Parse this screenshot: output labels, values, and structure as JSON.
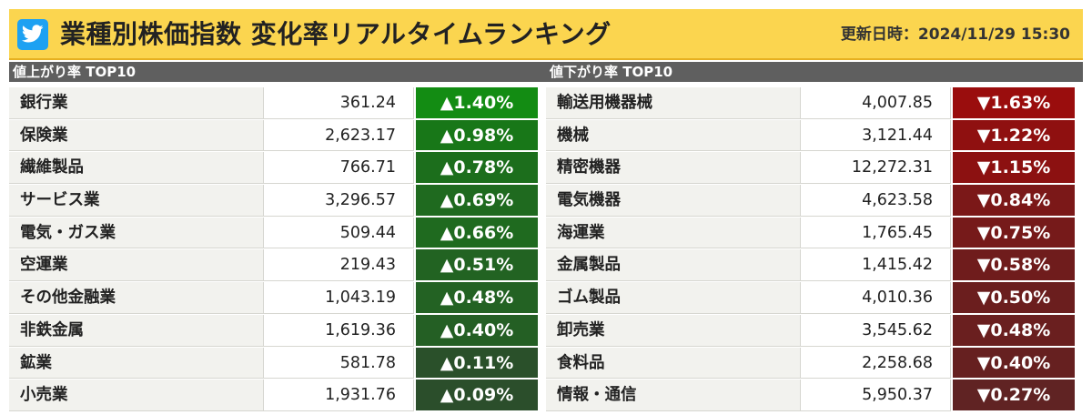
{
  "header": {
    "icon": "twitter-icon",
    "title": "業種別株価指数 変化率リアルタイムランキング",
    "updated_label": "更新日時：",
    "updated_value": "2024/11/29 15:30",
    "bg_color": "#fbd54f"
  },
  "gainers": {
    "heading": "値上がり率 TOP10",
    "rows": [
      {
        "name": "銀行業",
        "value": "361.24",
        "change": "▲1.40%",
        "color": "#138c13"
      },
      {
        "name": "保険業",
        "value": "2,623.17",
        "change": "▲0.98%",
        "color": "#187718"
      },
      {
        "name": "繊維製品",
        "value": "766.71",
        "change": "▲0.78%",
        "color": "#1c6e1c"
      },
      {
        "name": "サービス業",
        "value": "3,296.57",
        "change": "▲0.69%",
        "color": "#1f6a1f"
      },
      {
        "name": "電気・ガス業",
        "value": "509.44",
        "change": "▲0.66%",
        "color": "#1f6a1f"
      },
      {
        "name": "空運業",
        "value": "219.43",
        "change": "▲0.51%",
        "color": "#226322"
      },
      {
        "name": "その他金融業",
        "value": "1,043.19",
        "change": "▲0.48%",
        "color": "#236223"
      },
      {
        "name": "非鉄金属",
        "value": "1,619.36",
        "change": "▲0.40%",
        "color": "#245f24"
      },
      {
        "name": "鉱業",
        "value": "581.78",
        "change": "▲0.11%",
        "color": "#2a502a"
      },
      {
        "name": "小売業",
        "value": "1,931.76",
        "change": "▲0.09%",
        "color": "#2b4e2b"
      }
    ]
  },
  "losers": {
    "heading": "値下がり率 TOP10",
    "rows": [
      {
        "name": "輸送用機器械",
        "value": "4,007.85",
        "change": "▼1.63%",
        "color": "#9a0d0d"
      },
      {
        "name": "機械",
        "value": "3,121.44",
        "change": "▼1.22%",
        "color": "#8f1010"
      },
      {
        "name": "精密機器",
        "value": "12,272.31",
        "change": "▼1.15%",
        "color": "#8c1111"
      },
      {
        "name": "電気機器",
        "value": "4,623.58",
        "change": "▼0.84%",
        "color": "#7b1818"
      },
      {
        "name": "海運業",
        "value": "1,765.45",
        "change": "▼0.75%",
        "color": "#761a1a"
      },
      {
        "name": "金属製品",
        "value": "1,415.42",
        "change": "▼0.58%",
        "color": "#6f1c1c"
      },
      {
        "name": "ゴム製品",
        "value": "4,010.36",
        "change": "▼0.50%",
        "color": "#6b1e1e"
      },
      {
        "name": "卸売業",
        "value": "3,545.62",
        "change": "▼0.48%",
        "color": "#6a1f1f"
      },
      {
        "name": "食料品",
        "value": "2,258.68",
        "change": "▼0.40%",
        "color": "#662020"
      },
      {
        "name": "情報・通信",
        "value": "5,950.37",
        "change": "▼0.27%",
        "color": "#602323"
      }
    ]
  }
}
